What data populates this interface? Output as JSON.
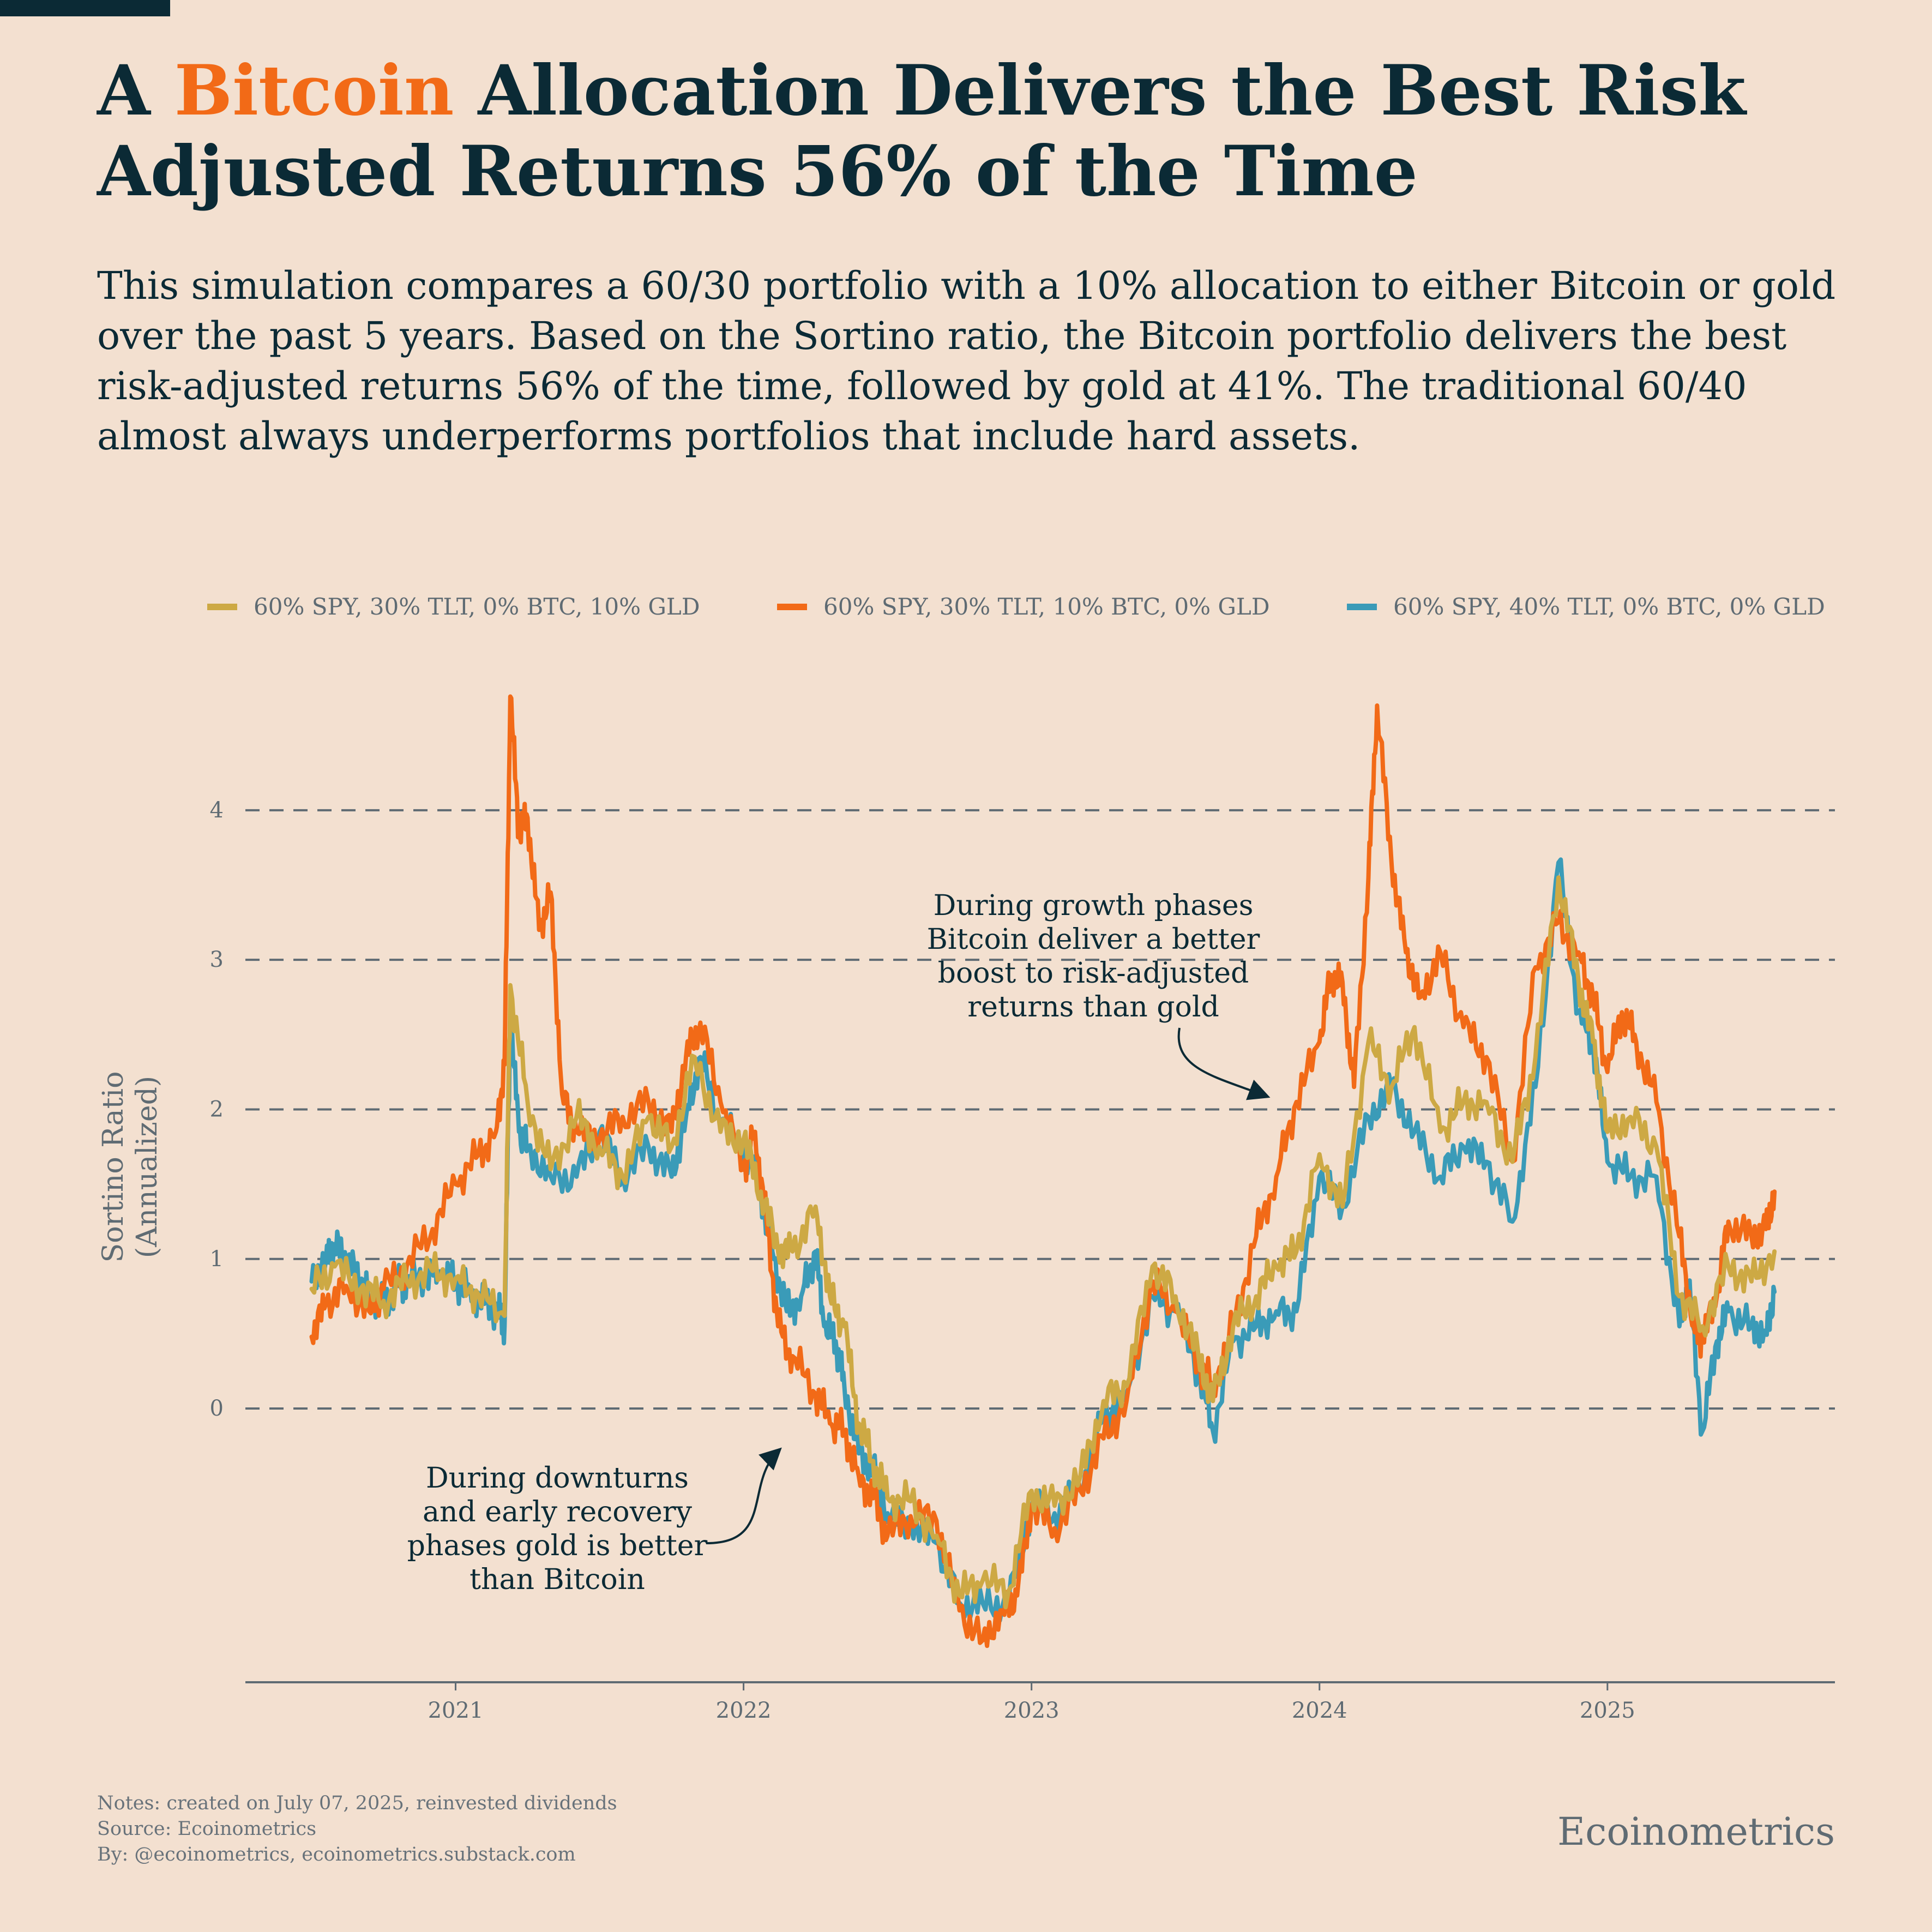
{
  "header": {
    "title_prefix": "A ",
    "title_highlight": "Bitcoin",
    "title_rest": " Allocation Delivers the Best Risk Adjusted Returns 56% of the Time",
    "subtitle": "This simulation compares a 60/30 portfolio with a 10% allocation to either Bitcoin or gold over the past 5 years. Based on the Sortino ratio, the Bitcoin portfolio delivers the best risk-adjusted returns 56% of the time, followed by gold at 41%. The traditional 60/40 almost always underperforms portfolios that include hard assets."
  },
  "colors": {
    "gold": "#cda944",
    "btc": "#f26a17",
    "base": "#3a9bb8",
    "grid": "#5f6b73",
    "text": "#0b2a35"
  },
  "footer": {
    "notes": "Notes: created on July 07, 2025, reinvested dividends",
    "source": "Source: Ecoinometrics",
    "by": "By: @ecoinometrics, ecoinometrics.substack.com",
    "brand": "Ecoinometrics"
  },
  "chart_data": {
    "type": "line",
    "title": "A Bitcoin Allocation Delivers the Best Risk Adjusted Returns 56% of the Time",
    "xlabel": "",
    "ylabel": "Sortino Ratio (Annualized)",
    "ylabel_lines": [
      "Sortino Ratio",
      "(Annualized)"
    ],
    "xlim": [
      2020.27,
      2025.79
    ],
    "ylim": [
      -1.83,
      4.86
    ],
    "yticks": [
      0,
      1,
      2,
      3,
      4
    ],
    "ytick_labels": [
      "0",
      "1",
      "2",
      "3",
      "4"
    ],
    "xticks": [
      2021,
      2022,
      2023,
      2024,
      2025
    ],
    "xtick_labels": [
      "2021",
      "2022",
      "2023",
      "2024",
      "2025"
    ],
    "grid": "horizontal dashed",
    "legend_position": "top",
    "series": [
      {
        "name": "60% SPY, 30% TLT, 0% BTC, 10% GLD",
        "color_key": "gold",
        "points": [
          [
            2020.5,
            0.8
          ],
          [
            2020.58,
            0.95
          ],
          [
            2020.67,
            0.8
          ],
          [
            2020.75,
            0.72
          ],
          [
            2020.83,
            0.85
          ],
          [
            2020.92,
            0.92
          ],
          [
            2021.0,
            0.87
          ],
          [
            2021.08,
            0.76
          ],
          [
            2021.17,
            0.62
          ],
          [
            2021.19,
            2.83
          ],
          [
            2021.25,
            2.05
          ],
          [
            2021.33,
            1.6
          ],
          [
            2021.42,
            1.95
          ],
          [
            2021.5,
            1.75
          ],
          [
            2021.58,
            1.55
          ],
          [
            2021.67,
            1.95
          ],
          [
            2021.75,
            1.75
          ],
          [
            2021.83,
            2.35
          ],
          [
            2021.92,
            1.85
          ],
          [
            2022.0,
            1.8
          ],
          [
            2022.06,
            1.45
          ],
          [
            2022.12,
            1.05
          ],
          [
            2022.17,
            1.05
          ],
          [
            2022.25,
            1.35
          ],
          [
            2022.3,
            0.75
          ],
          [
            2022.35,
            0.55
          ],
          [
            2022.4,
            -0.1
          ],
          [
            2022.45,
            -0.35
          ],
          [
            2022.5,
            -0.6
          ],
          [
            2022.58,
            -0.62
          ],
          [
            2022.67,
            -0.85
          ],
          [
            2022.75,
            -1.25
          ],
          [
            2022.83,
            -1.15
          ],
          [
            2022.92,
            -1.22
          ],
          [
            2023.0,
            -0.55
          ],
          [
            2023.08,
            -0.65
          ],
          [
            2023.17,
            -0.45
          ],
          [
            2023.25,
            0.05
          ],
          [
            2023.33,
            0.15
          ],
          [
            2023.42,
            0.95
          ],
          [
            2023.5,
            0.75
          ],
          [
            2023.58,
            0.35
          ],
          [
            2023.63,
            0.05
          ],
          [
            2023.7,
            0.55
          ],
          [
            2023.78,
            0.75
          ],
          [
            2023.85,
            0.95
          ],
          [
            2023.92,
            1.05
          ],
          [
            2024.0,
            1.7
          ],
          [
            2024.08,
            1.35
          ],
          [
            2024.17,
            2.45
          ],
          [
            2024.25,
            2.15
          ],
          [
            2024.33,
            2.55
          ],
          [
            2024.42,
            1.85
          ],
          [
            2024.5,
            2.05
          ],
          [
            2024.58,
            2.05
          ],
          [
            2024.67,
            1.65
          ],
          [
            2024.75,
            2.35
          ],
          [
            2024.83,
            3.55
          ],
          [
            2024.9,
            2.85
          ],
          [
            2024.95,
            2.45
          ],
          [
            2025.0,
            1.85
          ],
          [
            2025.08,
            1.95
          ],
          [
            2025.17,
            1.75
          ],
          [
            2025.25,
            0.75
          ],
          [
            2025.33,
            0.55
          ],
          [
            2025.42,
            0.95
          ],
          [
            2025.5,
            0.85
          ],
          [
            2025.58,
            1.05
          ]
        ]
      },
      {
        "name": "60% SPY, 30% TLT, 10% BTC, 0% GLD",
        "color_key": "btc",
        "points": [
          [
            2020.5,
            0.48
          ],
          [
            2020.55,
            0.7
          ],
          [
            2020.62,
            0.82
          ],
          [
            2020.7,
            0.65
          ],
          [
            2020.75,
            0.8
          ],
          [
            2020.83,
            0.95
          ],
          [
            2020.92,
            1.2
          ],
          [
            2021.0,
            1.5
          ],
          [
            2021.08,
            1.7
          ],
          [
            2021.14,
            1.85
          ],
          [
            2021.17,
            2.3
          ],
          [
            2021.19,
            4.76
          ],
          [
            2021.22,
            3.85
          ],
          [
            2021.25,
            3.95
          ],
          [
            2021.29,
            3.2
          ],
          [
            2021.33,
            3.45
          ],
          [
            2021.37,
            2.1
          ],
          [
            2021.42,
            1.85
          ],
          [
            2021.5,
            1.8
          ],
          [
            2021.58,
            1.95
          ],
          [
            2021.67,
            2.05
          ],
          [
            2021.75,
            1.85
          ],
          [
            2021.8,
            2.35
          ],
          [
            2021.85,
            2.58
          ],
          [
            2021.92,
            2.05
          ],
          [
            2022.0,
            1.6
          ],
          [
            2022.04,
            1.85
          ],
          [
            2022.08,
            1.25
          ],
          [
            2022.12,
            0.55
          ],
          [
            2022.17,
            0.35
          ],
          [
            2022.25,
            0.1
          ],
          [
            2022.3,
            -0.1
          ],
          [
            2022.35,
            -0.15
          ],
          [
            2022.4,
            -0.45
          ],
          [
            2022.45,
            -0.6
          ],
          [
            2022.5,
            -0.85
          ],
          [
            2022.58,
            -0.72
          ],
          [
            2022.67,
            -0.75
          ],
          [
            2022.75,
            -1.35
          ],
          [
            2022.83,
            -1.55
          ],
          [
            2022.9,
            -1.35
          ],
          [
            2022.95,
            -1.25
          ],
          [
            2023.0,
            -0.65
          ],
          [
            2023.08,
            -0.8
          ],
          [
            2023.17,
            -0.55
          ],
          [
            2023.25,
            -0.2
          ],
          [
            2023.33,
            0.05
          ],
          [
            2023.42,
            0.85
          ],
          [
            2023.5,
            0.65
          ],
          [
            2023.58,
            0.3
          ],
          [
            2023.63,
            0.15
          ],
          [
            2023.7,
            0.55
          ],
          [
            2023.78,
            1.15
          ],
          [
            2023.85,
            1.55
          ],
          [
            2023.92,
            2.05
          ],
          [
            2024.0,
            2.45
          ],
          [
            2024.04,
            2.9
          ],
          [
            2024.08,
            2.85
          ],
          [
            2024.12,
            2.15
          ],
          [
            2024.17,
            3.55
          ],
          [
            2024.2,
            4.7
          ],
          [
            2024.25,
            3.65
          ],
          [
            2024.3,
            3.05
          ],
          [
            2024.35,
            2.75
          ],
          [
            2024.42,
            3.05
          ],
          [
            2024.5,
            2.55
          ],
          [
            2024.58,
            2.35
          ],
          [
            2024.67,
            1.65
          ],
          [
            2024.75,
            2.95
          ],
          [
            2024.83,
            3.25
          ],
          [
            2024.9,
            3.05
          ],
          [
            2024.95,
            2.75
          ],
          [
            2025.0,
            2.25
          ],
          [
            2025.05,
            2.65
          ],
          [
            2025.1,
            2.45
          ],
          [
            2025.17,
            2.05
          ],
          [
            2025.25,
            1.15
          ],
          [
            2025.3,
            0.55
          ],
          [
            2025.33,
            0.45
          ],
          [
            2025.38,
            0.75
          ],
          [
            2025.42,
            1.25
          ],
          [
            2025.5,
            1.15
          ],
          [
            2025.55,
            1.2
          ],
          [
            2025.58,
            1.45
          ]
        ]
      },
      {
        "name": "60% SPY, 40% TLT, 0% BTC, 0% GLD",
        "color_key": "base",
        "points": [
          [
            2020.5,
            0.85
          ],
          [
            2020.55,
            1.0
          ],
          [
            2020.58,
            1.1
          ],
          [
            2020.62,
            1.0
          ],
          [
            2020.67,
            0.85
          ],
          [
            2020.7,
            0.75
          ],
          [
            2020.75,
            0.7
          ],
          [
            2020.8,
            0.82
          ],
          [
            2020.83,
            0.85
          ],
          [
            2020.9,
            0.9
          ],
          [
            2020.95,
            0.88
          ],
          [
            2021.0,
            0.85
          ],
          [
            2021.05,
            0.8
          ],
          [
            2021.1,
            0.7
          ],
          [
            2021.15,
            0.65
          ],
          [
            2021.17,
            0.55
          ],
          [
            2021.19,
            2.62
          ],
          [
            2021.22,
            1.85
          ],
          [
            2021.25,
            1.75
          ],
          [
            2021.33,
            1.55
          ],
          [
            2021.42,
            1.55
          ],
          [
            2021.5,
            1.85
          ],
          [
            2021.58,
            1.55
          ],
          [
            2021.67,
            1.75
          ],
          [
            2021.75,
            1.55
          ],
          [
            2021.8,
            1.95
          ],
          [
            2021.85,
            2.35
          ],
          [
            2021.92,
            1.9
          ],
          [
            2022.0,
            1.75
          ],
          [
            2022.06,
            1.45
          ],
          [
            2022.1,
            1.05
          ],
          [
            2022.15,
            0.65
          ],
          [
            2022.2,
            0.75
          ],
          [
            2022.25,
            1.05
          ],
          [
            2022.28,
            0.55
          ],
          [
            2022.32,
            0.45
          ],
          [
            2022.35,
            0.15
          ],
          [
            2022.4,
            -0.3
          ],
          [
            2022.45,
            -0.4
          ],
          [
            2022.5,
            -0.7
          ],
          [
            2022.58,
            -0.78
          ],
          [
            2022.67,
            -0.9
          ],
          [
            2022.75,
            -1.3
          ],
          [
            2022.83,
            -1.3
          ],
          [
            2022.92,
            -1.3
          ],
          [
            2023.0,
            -0.65
          ],
          [
            2023.08,
            -0.7
          ],
          [
            2023.17,
            -0.55
          ],
          [
            2023.25,
            -0.05
          ],
          [
            2023.33,
            0.1
          ],
          [
            2023.42,
            0.75
          ],
          [
            2023.5,
            0.65
          ],
          [
            2023.58,
            0.25
          ],
          [
            2023.63,
            -0.15
          ],
          [
            2023.7,
            0.45
          ],
          [
            2023.78,
            0.55
          ],
          [
            2023.85,
            0.65
          ],
          [
            2023.92,
            0.65
          ],
          [
            2024.0,
            1.55
          ],
          [
            2024.08,
            1.35
          ],
          [
            2024.17,
            1.95
          ],
          [
            2024.25,
            2.15
          ],
          [
            2024.33,
            1.85
          ],
          [
            2024.42,
            1.55
          ],
          [
            2024.5,
            1.75
          ],
          [
            2024.58,
            1.65
          ],
          [
            2024.67,
            1.25
          ],
          [
            2024.75,
            2.15
          ],
          [
            2024.83,
            3.65
          ],
          [
            2024.9,
            2.65
          ],
          [
            2024.95,
            2.45
          ],
          [
            2025.0,
            1.65
          ],
          [
            2025.08,
            1.55
          ],
          [
            2025.17,
            1.55
          ],
          [
            2025.25,
            0.55
          ],
          [
            2025.28,
            0.85
          ],
          [
            2025.33,
            -0.15
          ],
          [
            2025.38,
            0.45
          ],
          [
            2025.42,
            0.65
          ],
          [
            2025.5,
            0.55
          ],
          [
            2025.55,
            0.5
          ],
          [
            2025.58,
            0.78
          ]
        ]
      }
    ],
    "annotations": [
      {
        "text": [
          "During growth phases",
          "Bitcoin deliver a better",
          "boost to risk-adjusted",
          "returns than gold"
        ],
        "target": [
          2023.8,
          1.85
        ]
      },
      {
        "text": [
          "During downturns",
          "and early recovery",
          "phases gold is better",
          "than Bitcoin"
        ],
        "target": [
          2022.13,
          -0.25
        ]
      }
    ]
  }
}
